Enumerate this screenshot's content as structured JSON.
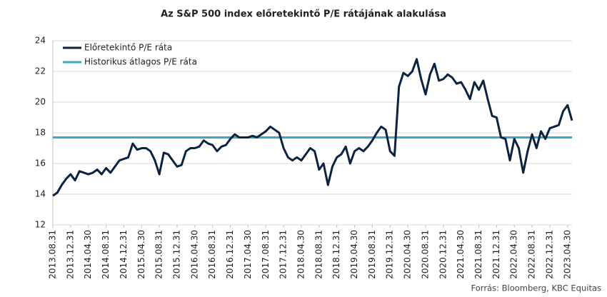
{
  "chart_data": {
    "type": "line",
    "title": "Az S&P 500 index előretekintő P/E rátájának alakulása",
    "source": "Forrás: Bloomberg, KBC Equitas",
    "categories": [
      "2013.08.31",
      null,
      null,
      null,
      "2013.12.31",
      null,
      null,
      null,
      "2014.04.30",
      null,
      null,
      null,
      "2014.08.31",
      null,
      null,
      null,
      "2014.12.31",
      null,
      null,
      null,
      "2015.04.30",
      null,
      null,
      null,
      "2015.08.31",
      null,
      null,
      null,
      "2015.12.31",
      null,
      null,
      null,
      "2016.04.30",
      null,
      null,
      null,
      "2016.08.31",
      null,
      null,
      null,
      "2016.12.31",
      null,
      null,
      null,
      "2017.04.30",
      null,
      null,
      null,
      "2017.08.31",
      null,
      null,
      null,
      "2017.12.31",
      null,
      null,
      null,
      "2018.04.30",
      null,
      null,
      null,
      "2018.08.31",
      null,
      null,
      null,
      "2018.12.31",
      null,
      null,
      null,
      "2019.04.30",
      null,
      null,
      null,
      "2019.08.31",
      null,
      null,
      null,
      "2019.12.31",
      null,
      null,
      null,
      "2020.04.30",
      null,
      null,
      null,
      "2020.08.31",
      null,
      null,
      null,
      "2020.12.31",
      null,
      null,
      null,
      "2021.04.30",
      null,
      null,
      null,
      "2021.08.31",
      null,
      null,
      null,
      "2021.12.31",
      null,
      null,
      null,
      "2022.04.30",
      null,
      null,
      null,
      "2022.08.31",
      null,
      null,
      null,
      "2022.12.31",
      null,
      null,
      null,
      "2023.04.30",
      null
    ],
    "series": [
      {
        "name": "Előretekintő P/E ráta",
        "color": "#0c2340",
        "values": [
          13.9,
          14.1,
          14.6,
          15.0,
          15.3,
          14.9,
          15.5,
          15.4,
          15.3,
          15.4,
          15.6,
          15.3,
          15.7,
          15.4,
          15.8,
          16.2,
          16.3,
          16.4,
          17.3,
          16.9,
          17.0,
          17.0,
          16.8,
          16.2,
          15.3,
          16.7,
          16.6,
          16.2,
          15.8,
          15.9,
          16.8,
          17.0,
          17.0,
          17.1,
          17.5,
          17.3,
          17.2,
          16.8,
          17.1,
          17.2,
          17.6,
          17.9,
          17.7,
          17.7,
          17.7,
          17.8,
          17.7,
          17.9,
          18.1,
          18.4,
          18.2,
          18.0,
          17.0,
          16.4,
          16.2,
          16.4,
          16.2,
          16.6,
          17.0,
          16.8,
          15.6,
          16.0,
          14.6,
          15.8,
          16.4,
          16.6,
          17.1,
          16.0,
          16.8,
          17.0,
          16.8,
          17.1,
          17.5,
          18.0,
          18.4,
          18.2,
          16.8,
          16.5,
          21.0,
          21.9,
          21.7,
          22.0,
          22.8,
          21.5,
          20.5,
          21.8,
          22.5,
          21.4,
          21.5,
          21.8,
          21.6,
          21.2,
          21.3,
          20.8,
          20.2,
          21.3,
          20.8,
          21.4,
          20.2,
          19.1,
          19.0,
          17.7,
          17.6,
          16.2,
          17.6,
          17.0,
          15.4,
          16.8,
          17.9,
          17.0,
          18.1,
          17.6,
          18.3,
          18.4,
          18.5,
          19.4,
          19.8,
          18.8
        ]
      }
    ],
    "average": {
      "name": "Historikus átlagos P/E ráta",
      "color": "#3aa9c8",
      "value": 17.7
    },
    "ylim": [
      12,
      24
    ],
    "yticks": [
      12,
      14,
      16,
      18,
      20,
      22,
      24
    ],
    "grid": true
  }
}
